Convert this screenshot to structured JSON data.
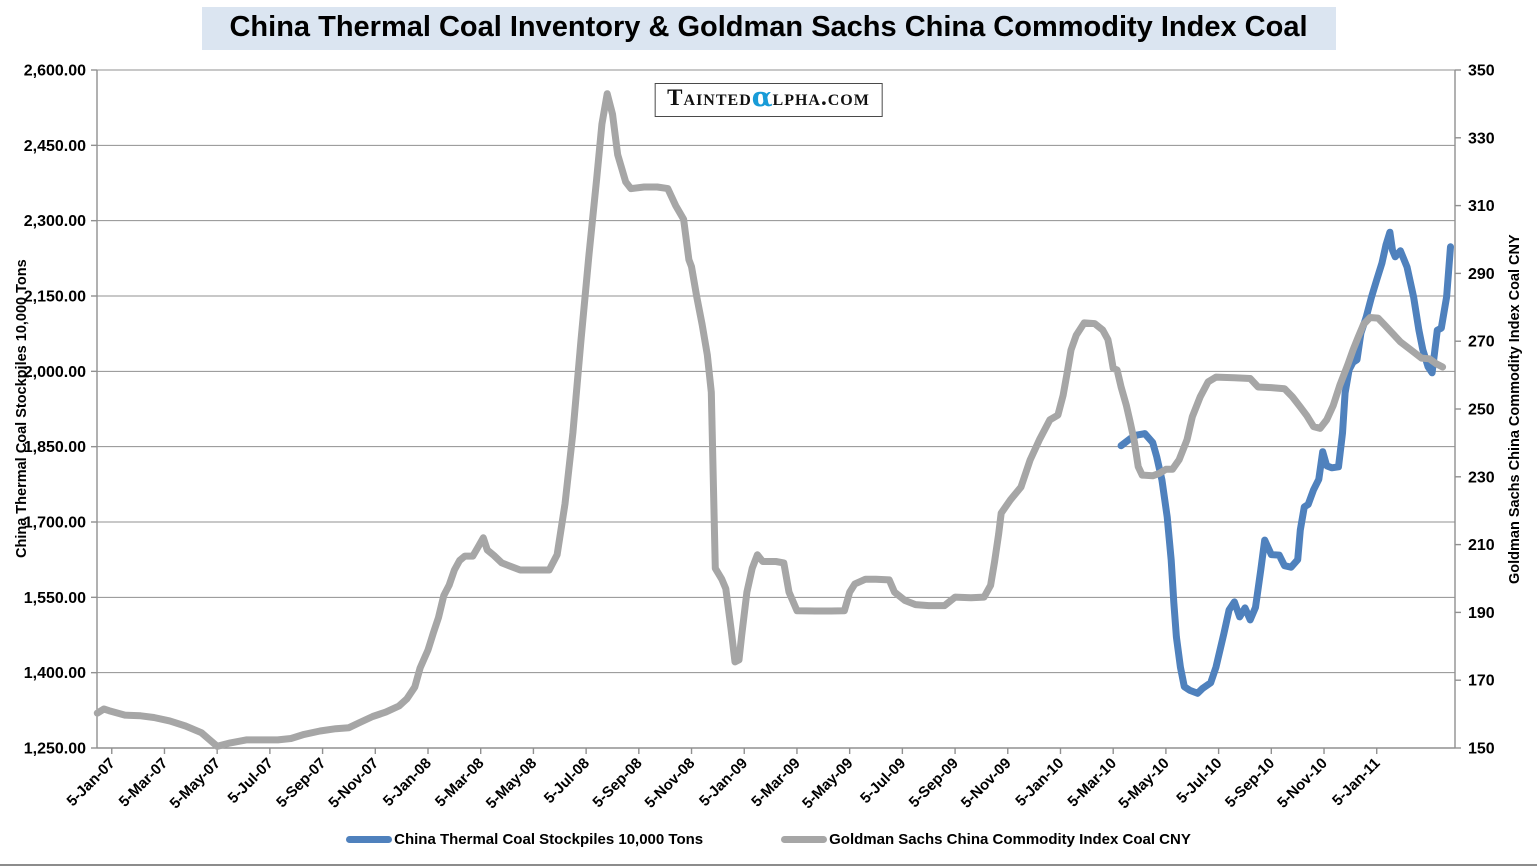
{
  "chart": {
    "title": "China Thermal Coal Inventory & Goldman Sachs China Commodity Index Coal",
    "watermark": {
      "prefix": "Tainted",
      "alpha": "α",
      "suffix": "lpha.com",
      "alpha_color": "#189bd7"
    }
  },
  "chart_data": {
    "type": "line",
    "title": "China Thermal Coal Inventory & Goldman Sachs China Commodity Index Coal",
    "grid": true,
    "legend_position": "bottom",
    "x_axis": {
      "tick_labels": [
        "5-Jan-07",
        "5-Mar-07",
        "5-May-07",
        "5-Jul-07",
        "5-Sep-07",
        "5-Nov-07",
        "5-Jan-08",
        "5-Mar-08",
        "5-May-08",
        "5-Jul-08",
        "5-Sep-08",
        "5-Nov-08",
        "5-Jan-09",
        "5-Mar-09",
        "5-May-09",
        "5-Jul-09",
        "5-Sep-09",
        "5-Nov-09",
        "5-Jan-10",
        "5-Mar-10",
        "5-May-10",
        "5-Jul-10",
        "5-Sep-10",
        "5-Nov-10",
        "5-Jan-11"
      ],
      "tick_months": [
        0,
        2,
        4,
        6,
        8,
        10,
        12,
        14,
        16,
        18,
        20,
        22,
        24,
        26,
        28,
        30,
        32,
        34,
        36,
        38,
        40,
        42,
        44,
        46,
        48
      ],
      "unit": "months since 5-Jan-07"
    },
    "left_axis": {
      "title": "China Thermal Coal Stockpiles 10,000 Tons",
      "min": 1250,
      "max": 2600,
      "step": 150,
      "tick_labels": [
        "1,250.00",
        "1,400.00",
        "1,550.00",
        "1,700.00",
        "1,850.00",
        "2,000.00",
        "2,150.00",
        "2,300.00",
        "2,450.00",
        "2,600.00"
      ],
      "tick_values": [
        1250,
        1400,
        1550,
        1700,
        1850,
        2000,
        2150,
        2300,
        2450,
        2600
      ]
    },
    "right_axis": {
      "title": "Goldman Sachs China Commodity Index Coal CNY",
      "min": 150,
      "max": 350,
      "step": 20,
      "tick_labels": [
        "150",
        "170",
        "190",
        "210",
        "230",
        "250",
        "270",
        "290",
        "310",
        "330",
        "350"
      ],
      "tick_values": [
        150,
        170,
        190,
        210,
        230,
        250,
        270,
        290,
        310,
        330,
        350
      ]
    },
    "series": [
      {
        "name": "China Thermal Coal Stockpiles 10,000 Tons",
        "axis": "left",
        "color": "#4f81bd",
        "points": [
          [
            38.3,
            1852
          ],
          [
            38.65,
            1866
          ],
          [
            38.9,
            1873
          ],
          [
            39.2,
            1876
          ],
          [
            39.5,
            1858
          ],
          [
            39.65,
            1830
          ],
          [
            39.85,
            1784
          ],
          [
            40.05,
            1710
          ],
          [
            40.2,
            1624
          ],
          [
            40.3,
            1540
          ],
          [
            40.4,
            1471
          ],
          [
            40.55,
            1411
          ],
          [
            40.7,
            1372
          ],
          [
            40.9,
            1365
          ],
          [
            41.2,
            1359
          ],
          [
            41.4,
            1369
          ],
          [
            41.7,
            1380
          ],
          [
            41.9,
            1411
          ],
          [
            42.2,
            1478
          ],
          [
            42.4,
            1525
          ],
          [
            42.6,
            1541
          ],
          [
            42.8,
            1511
          ],
          [
            43.0,
            1529
          ],
          [
            43.2,
            1505
          ],
          [
            43.4,
            1530
          ],
          [
            43.6,
            1605
          ],
          [
            43.75,
            1664
          ],
          [
            44.0,
            1635
          ],
          [
            44.3,
            1634
          ],
          [
            44.5,
            1613
          ],
          [
            44.75,
            1610
          ],
          [
            45.0,
            1625
          ],
          [
            45.1,
            1684
          ],
          [
            45.25,
            1730
          ],
          [
            45.4,
            1735
          ],
          [
            45.6,
            1764
          ],
          [
            45.8,
            1785
          ],
          [
            45.95,
            1840
          ],
          [
            46.1,
            1812
          ],
          [
            46.3,
            1808
          ],
          [
            46.55,
            1810
          ],
          [
            46.7,
            1877
          ],
          [
            46.8,
            1957
          ],
          [
            46.95,
            2003
          ],
          [
            47.1,
            2018
          ],
          [
            47.25,
            2023
          ],
          [
            47.4,
            2076
          ],
          [
            47.6,
            2108
          ],
          [
            47.8,
            2148
          ],
          [
            48.0,
            2182
          ],
          [
            48.2,
            2216
          ],
          [
            48.35,
            2252
          ],
          [
            48.5,
            2277
          ],
          [
            48.6,
            2241
          ],
          [
            48.7,
            2228
          ],
          [
            48.9,
            2240
          ],
          [
            49.15,
            2208
          ],
          [
            49.4,
            2148
          ],
          [
            49.6,
            2082
          ],
          [
            49.75,
            2043
          ],
          [
            49.95,
            2009
          ],
          [
            50.1,
            1997
          ],
          [
            50.3,
            2082
          ],
          [
            50.45,
            2086
          ],
          [
            50.65,
            2148
          ],
          [
            50.8,
            2248
          ]
        ]
      },
      {
        "name": "Goldman Sachs China Commodity Index Coal CNY",
        "axis": "right",
        "color": "#a6a6a6",
        "points": [
          [
            -0.55,
            160.3
          ],
          [
            -0.3,
            161.5
          ],
          [
            -0.1,
            161.0
          ],
          [
            0.5,
            159.7
          ],
          [
            1.1,
            159.5
          ],
          [
            1.6,
            159.0
          ],
          [
            2.2,
            158.0
          ],
          [
            2.8,
            156.5
          ],
          [
            3.4,
            154.5
          ],
          [
            3.7,
            152.5
          ],
          [
            4.0,
            150.5
          ],
          [
            4.5,
            151.5
          ],
          [
            5.1,
            152.4
          ],
          [
            5.7,
            152.4
          ],
          [
            6.3,
            152.4
          ],
          [
            6.8,
            152.8
          ],
          [
            7.3,
            154.0
          ],
          [
            7.9,
            155.0
          ],
          [
            8.5,
            155.7
          ],
          [
            9.0,
            156.0
          ],
          [
            9.4,
            157.5
          ],
          [
            9.9,
            159.3
          ],
          [
            10.4,
            160.6
          ],
          [
            10.9,
            162.4
          ],
          [
            11.2,
            164.5
          ],
          [
            11.5,
            168.0
          ],
          [
            11.7,
            173.6
          ],
          [
            12.0,
            178.9
          ],
          [
            12.2,
            183.9
          ],
          [
            12.4,
            188.5
          ],
          [
            12.6,
            195.0
          ],
          [
            12.8,
            198.0
          ],
          [
            13.0,
            202.5
          ],
          [
            13.2,
            205.3
          ],
          [
            13.4,
            206.6
          ],
          [
            13.7,
            206.6
          ],
          [
            13.9,
            209.3
          ],
          [
            14.1,
            212.0
          ],
          [
            14.25,
            208.4
          ],
          [
            14.5,
            206.8
          ],
          [
            14.8,
            204.6
          ],
          [
            15.2,
            203.4
          ],
          [
            15.5,
            202.5
          ],
          [
            16.1,
            202.5
          ],
          [
            16.6,
            202.5
          ],
          [
            16.9,
            207.0
          ],
          [
            17.2,
            222.0
          ],
          [
            17.5,
            243.0
          ],
          [
            17.8,
            270.0
          ],
          [
            18.1,
            295.0
          ],
          [
            18.4,
            318.0
          ],
          [
            18.6,
            334.0
          ],
          [
            18.8,
            343.0
          ],
          [
            19.0,
            337.0
          ],
          [
            19.2,
            325.0
          ],
          [
            19.5,
            317.0
          ],
          [
            19.7,
            315.0
          ],
          [
            20.2,
            315.5
          ],
          [
            20.7,
            315.5
          ],
          [
            21.1,
            315.0
          ],
          [
            21.4,
            310.0
          ],
          [
            21.7,
            306.0
          ],
          [
            21.9,
            294.0
          ],
          [
            22.0,
            292.0
          ],
          [
            22.2,
            283.0
          ],
          [
            22.4,
            275.0
          ],
          [
            22.6,
            266.0
          ],
          [
            22.75,
            255.0
          ],
          [
            22.9,
            203.0
          ],
          [
            23.15,
            199.8
          ],
          [
            23.3,
            197.0
          ],
          [
            23.5,
            185.0
          ],
          [
            23.65,
            175.4
          ],
          [
            23.8,
            176.0
          ],
          [
            23.9,
            183.0
          ],
          [
            24.1,
            196.0
          ],
          [
            24.3,
            203.0
          ],
          [
            24.5,
            207.0
          ],
          [
            24.7,
            205.0
          ],
          [
            25.2,
            205.0
          ],
          [
            25.5,
            204.6
          ],
          [
            25.7,
            196.0
          ],
          [
            26.0,
            190.5
          ],
          [
            26.7,
            190.4
          ],
          [
            27.3,
            190.4
          ],
          [
            27.8,
            190.5
          ],
          [
            28.0,
            196.0
          ],
          [
            28.2,
            198.4
          ],
          [
            28.6,
            199.8
          ],
          [
            29.0,
            199.8
          ],
          [
            29.5,
            199.6
          ],
          [
            29.7,
            196.0
          ],
          [
            30.1,
            193.5
          ],
          [
            30.5,
            192.3
          ],
          [
            31.0,
            192.0
          ],
          [
            31.6,
            192.0
          ],
          [
            32.0,
            194.5
          ],
          [
            32.6,
            194.3
          ],
          [
            33.1,
            194.5
          ],
          [
            33.35,
            198.0
          ],
          [
            33.5,
            205.0
          ],
          [
            33.65,
            213.0
          ],
          [
            33.75,
            219.3
          ],
          [
            34.1,
            223.2
          ],
          [
            34.5,
            227.0
          ],
          [
            34.85,
            235.0
          ],
          [
            35.2,
            240.9
          ],
          [
            35.6,
            246.8
          ],
          [
            35.9,
            248.2
          ],
          [
            36.1,
            254.0
          ],
          [
            36.25,
            260.6
          ],
          [
            36.4,
            267.4
          ],
          [
            36.6,
            271.8
          ],
          [
            36.9,
            275.4
          ],
          [
            37.3,
            275.2
          ],
          [
            37.6,
            273.3
          ],
          [
            37.8,
            270.5
          ],
          [
            37.9,
            266.5
          ],
          [
            38.0,
            262.0
          ],
          [
            38.15,
            261.5
          ],
          [
            38.3,
            256.5
          ],
          [
            38.5,
            251.0
          ],
          [
            38.65,
            246.0
          ],
          [
            38.8,
            240.5
          ],
          [
            38.95,
            233.0
          ],
          [
            39.1,
            230.5
          ],
          [
            39.5,
            230.3
          ],
          [
            39.75,
            231.0
          ],
          [
            40.0,
            232.2
          ],
          [
            40.25,
            232.2
          ],
          [
            40.5,
            235.0
          ],
          [
            40.8,
            240.9
          ],
          [
            41.0,
            247.7
          ],
          [
            41.3,
            253.6
          ],
          [
            41.6,
            258.0
          ],
          [
            41.9,
            259.4
          ],
          [
            42.6,
            259.2
          ],
          [
            43.2,
            259.0
          ],
          [
            43.5,
            256.5
          ],
          [
            44.0,
            256.3
          ],
          [
            44.5,
            256.0
          ],
          [
            44.8,
            253.6
          ],
          [
            45.1,
            250.6
          ],
          [
            45.35,
            248.0
          ],
          [
            45.6,
            244.8
          ],
          [
            45.85,
            244.3
          ],
          [
            46.1,
            246.8
          ],
          [
            46.35,
            251.0
          ],
          [
            46.6,
            257.0
          ],
          [
            46.9,
            263.0
          ],
          [
            47.1,
            267.4
          ],
          [
            47.3,
            271.3
          ],
          [
            47.5,
            275.0
          ],
          [
            47.75,
            277.0
          ],
          [
            48.05,
            276.8
          ],
          [
            48.3,
            274.8
          ],
          [
            48.6,
            272.3
          ],
          [
            48.9,
            269.8
          ],
          [
            49.2,
            268.0
          ],
          [
            49.4,
            266.8
          ],
          [
            49.7,
            265.0
          ],
          [
            50.0,
            264.8
          ],
          [
            50.25,
            263.4
          ],
          [
            50.5,
            262.4
          ]
        ]
      }
    ],
    "legend": [
      "China Thermal Coal Stockpiles 10,000 Tons",
      "Goldman Sachs China Commodity Index Coal CNY"
    ],
    "colors": {
      "series1": "#4f81bd",
      "series2": "#a6a6a6",
      "grid": "#909090",
      "title_bg": "#dbe5f1"
    }
  }
}
